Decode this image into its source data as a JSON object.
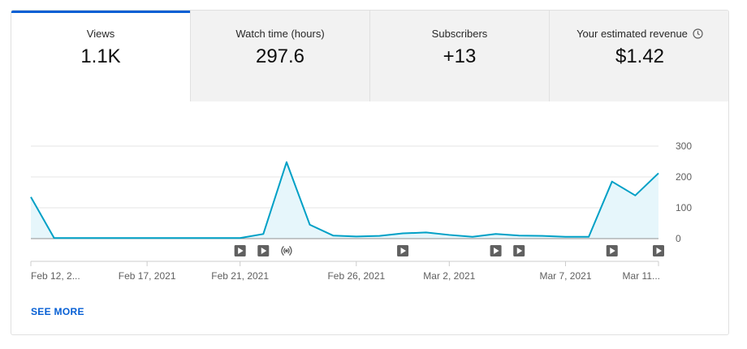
{
  "tabs": [
    {
      "label": "Views",
      "value": "1.1K",
      "active": true
    },
    {
      "label": "Watch time (hours)",
      "value": "297.6",
      "active": false
    },
    {
      "label": "Subscribers",
      "value": "+13",
      "active": false
    },
    {
      "label": "Your estimated revenue",
      "value": "$1.42",
      "active": false,
      "icon": "clock-icon"
    }
  ],
  "chart_data": {
    "type": "area",
    "title": "",
    "xlabel": "",
    "ylabel": "",
    "ylim": [
      0,
      300
    ],
    "yticks": [
      "300",
      "200",
      "100",
      "0"
    ],
    "grid": true,
    "series": [
      {
        "values": [
          135,
          2,
          2,
          2,
          2,
          2,
          2,
          2,
          2,
          2,
          15,
          248,
          45,
          10,
          7,
          9,
          17,
          20,
          12,
          6,
          15,
          10,
          9,
          6,
          6,
          185,
          140,
          212
        ]
      }
    ],
    "x_labels": [
      "Feb 12, 2...",
      "Feb 17, 2021",
      "Feb 21, 2021",
      "Feb 26, 2021",
      "Mar 2, 2021",
      "Mar 7, 2021",
      "Mar 11..."
    ],
    "x_label_index": [
      0,
      5,
      9,
      14,
      18,
      23,
      27
    ],
    "markers": [
      {
        "index": 9,
        "icon": "play-icon"
      },
      {
        "index": 10,
        "icon": "play-icon"
      },
      {
        "index": 11,
        "icon": "live-icon"
      },
      {
        "index": 16,
        "icon": "play-icon"
      },
      {
        "index": 20,
        "icon": "play-icon"
      },
      {
        "index": 21,
        "icon": "play-icon"
      },
      {
        "index": 25,
        "icon": "play-icon"
      },
      {
        "index": 27,
        "icon": "play-icon"
      }
    ],
    "colors": {
      "line": "#00a0c6",
      "fill": "#e6f6fb",
      "grid": "#e5e5e5",
      "axis": "#909090",
      "tick_text": "#606060",
      "marker_bg": "#606060"
    }
  },
  "footer": {
    "see_more": "SEE MORE"
  }
}
